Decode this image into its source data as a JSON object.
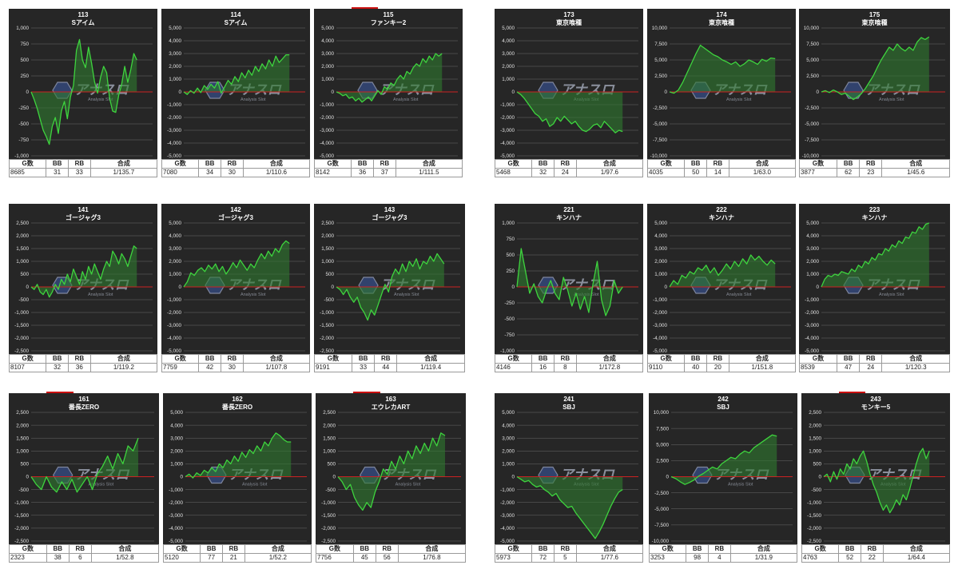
{
  "watermark": {
    "logo_text": "アナスロ",
    "tagline": "Analysis Slot"
  },
  "colors": {
    "background": "#262626",
    "line": "#3ed43e",
    "fill": "#2f7a2f",
    "zero_line": "#cc2222",
    "grid": "#6a6a6a",
    "header_bar": "#cc1111"
  },
  "headers": {
    "games": "G数",
    "bb": "BB",
    "rb": "RB",
    "combined": "合成"
  },
  "chart_data": [
    {
      "type": "line",
      "machine": "113",
      "model": "Sアイム",
      "ylim": [
        -1000,
        1000
      ],
      "ticks": [
        "1,000",
        "750",
        "500",
        "250",
        "0",
        "-250",
        "-500",
        "-750",
        "-1,000"
      ],
      "y": [
        0,
        -120,
        -260,
        -430,
        -600,
        -700,
        -820,
        -540,
        -400,
        -650,
        -300,
        -150,
        -420,
        -80,
        100,
        650,
        820,
        500,
        380,
        700,
        450,
        160,
        -20,
        230,
        400,
        300,
        -100,
        -300,
        -320,
        -50,
        120,
        400,
        150,
        350,
        600,
        500
      ],
      "stats": {
        "games": "8685",
        "bb": "31",
        "rb": "33",
        "combined": "1/135.7"
      }
    },
    {
      "type": "line",
      "machine": "114",
      "model": "Sアイム",
      "ylim": [
        -5000,
        5000
      ],
      "ticks": [
        "5,000",
        "4,000",
        "3,000",
        "2,000",
        "1,000",
        "0",
        "-1,000",
        "-2,000",
        "-3,000",
        "-4,000",
        "-5,000"
      ],
      "y": [
        0,
        -200,
        100,
        -100,
        300,
        -50,
        500,
        200,
        600,
        300,
        800,
        -100,
        400,
        900,
        600,
        1200,
        800,
        1500,
        1100,
        1700,
        1300,
        2000,
        1600,
        2200,
        1800,
        2500,
        2000,
        2800,
        2300,
        2600,
        2900,
        2900
      ],
      "stats": {
        "games": "7080",
        "bb": "34",
        "rb": "30",
        "combined": "1/110.6"
      }
    },
    {
      "type": "line",
      "machine": "115",
      "model": "ファンキー2",
      "ylim": [
        -5000,
        5000
      ],
      "ticks": [
        "5,000",
        "4,000",
        "3,000",
        "2,000",
        "1,000",
        "0",
        "-1,000",
        "-2,000",
        "-3,000",
        "-4,000",
        "-5,000"
      ],
      "topbar": true,
      "y": [
        0,
        -100,
        -300,
        -200,
        -500,
        -400,
        -700,
        -500,
        -800,
        -600,
        -400,
        -700,
        -300,
        100,
        -200,
        400,
        200,
        700,
        500,
        1000,
        1300,
        1000,
        1600,
        1400,
        1900,
        2200,
        2000,
        2600,
        2300,
        2800,
        2500,
        3000,
        2800,
        3000
      ],
      "stats": {
        "games": "8142",
        "bb": "36",
        "rb": "37",
        "combined": "1/111.5"
      }
    },
    {
      "type": "line",
      "machine": "173",
      "model": "東京喰種",
      "ylim": [
        -5000,
        5000
      ],
      "ticks": [
        "5,000",
        "4,000",
        "3,000",
        "2,000",
        "1,000",
        "0",
        "-1,000",
        "-2,000",
        "-3,000",
        "-4,000",
        "-5,000"
      ],
      "y": [
        0,
        -200,
        -500,
        -900,
        -1300,
        -1700,
        -1900,
        -2300,
        -2100,
        -2700,
        -2500,
        -2000,
        -2300,
        -1900,
        -2200,
        -2500,
        -2300,
        -2700,
        -3000,
        -3100,
        -2900,
        -2600,
        -2500,
        -2800,
        -2300,
        -2600,
        -2900,
        -3200,
        -3000,
        -3100
      ],
      "stats": {
        "games": "5468",
        "bb": "32",
        "rb": "24",
        "combined": "1/97.6"
      }
    },
    {
      "type": "line",
      "machine": "174",
      "model": "東京喰種",
      "ylim": [
        -10000,
        10000
      ],
      "ticks": [
        "10,000",
        "7,500",
        "5,000",
        "2,500",
        "0",
        "-2,500",
        "-5,000",
        "-7,500",
        "-10,000"
      ],
      "y": [
        0,
        -200,
        300,
        1500,
        3000,
        4500,
        6000,
        7300,
        6800,
        6300,
        5800,
        5500,
        5000,
        4700,
        4300,
        4700,
        4000,
        4400,
        5000,
        4700,
        4300,
        5100,
        4800,
        5300,
        5200
      ],
      "stats": {
        "games": "4035",
        "bb": "50",
        "rb": "14",
        "combined": "1/63.0"
      }
    },
    {
      "type": "line",
      "machine": "175",
      "model": "東京喰種",
      "ylim": [
        -10000,
        10000
      ],
      "ticks": [
        "10,000",
        "7,500",
        "5,000",
        "2,500",
        "0",
        "-2,500",
        "-5,000",
        "-7,500",
        "-10,000"
      ],
      "y": [
        0,
        200,
        -100,
        300,
        0,
        -400,
        -200,
        -700,
        -1200,
        -800,
        -300,
        500,
        1500,
        2500,
        3800,
        5000,
        6000,
        7000,
        6500,
        7500,
        6800,
        6400,
        7000,
        6500,
        7800,
        8500,
        8200,
        8600
      ],
      "stats": {
        "games": "3877",
        "bb": "62",
        "rb": "23",
        "combined": "1/45.6"
      }
    },
    {
      "type": "line",
      "machine": "141",
      "model": "ゴージャグ3",
      "ylim": [
        -2500,
        2500
      ],
      "ticks": [
        "2,500",
        "2,000",
        "1,500",
        "1,000",
        "500",
        "0",
        "-500",
        "-1,000",
        "-1,500",
        "-2,000",
        "-2,500"
      ],
      "y": [
        0,
        -100,
        100,
        -200,
        -300,
        -100,
        -400,
        -200,
        100,
        -100,
        300,
        100,
        500,
        200,
        700,
        400,
        100,
        600,
        300,
        800,
        500,
        900,
        600,
        300,
        700,
        1000,
        800,
        1400,
        1200,
        900,
        1300,
        1100,
        800,
        1200,
        1600,
        1500
      ],
      "stats": {
        "games": "8107",
        "bb": "32",
        "rb": "36",
        "combined": "1/119.2"
      }
    },
    {
      "type": "line",
      "machine": "142",
      "model": "ゴージャグ3",
      "ylim": [
        -5000,
        5000
      ],
      "ticks": [
        "5,000",
        "4,000",
        "3,000",
        "2,000",
        "1,000",
        "0",
        "-1,000",
        "-2,000",
        "-3,000",
        "-4,000",
        "-5,000"
      ],
      "y": [
        0,
        400,
        1100,
        900,
        1300,
        1500,
        1200,
        1700,
        1400,
        1800,
        1200,
        1600,
        1000,
        1400,
        1900,
        1500,
        2100,
        1700,
        1300,
        1800,
        1500,
        2100,
        2600,
        2200,
        2800,
        2400,
        3000,
        2700,
        3300,
        3600,
        3400
      ],
      "stats": {
        "games": "7759",
        "bb": "42",
        "rb": "30",
        "combined": "1/107.8"
      }
    },
    {
      "type": "line",
      "machine": "143",
      "model": "ゴージャグ3",
      "ylim": [
        -2500,
        2500
      ],
      "ticks": [
        "2,500",
        "2,000",
        "1,500",
        "1,000",
        "500",
        "0",
        "-500",
        "-1,000",
        "-1,500",
        "-2,000",
        "-2,500"
      ],
      "y": [
        0,
        -100,
        -300,
        -100,
        -400,
        -600,
        -400,
        -800,
        -1000,
        -1300,
        -900,
        -1100,
        -700,
        -300,
        100,
        -200,
        400,
        700,
        500,
        900,
        600,
        1000,
        800,
        1100,
        700,
        1000,
        900,
        1200,
        1000,
        1300,
        1100,
        900
      ],
      "stats": {
        "games": "9191",
        "bb": "33",
        "rb": "44",
        "combined": "1/119.4"
      }
    },
    {
      "type": "line",
      "machine": "221",
      "model": "キンハナ",
      "ylim": [
        -1000,
        1000
      ],
      "ticks": [
        "1,000",
        "750",
        "500",
        "250",
        "0",
        "-250",
        "-500",
        "-750",
        "-1,000"
      ],
      "y": [
        0,
        600,
        250,
        -100,
        50,
        -150,
        -250,
        -50,
        100,
        -100,
        -200,
        150,
        -50,
        -300,
        -100,
        -350,
        -150,
        -400,
        50,
        400,
        -200,
        -450,
        -300,
        100,
        -100,
        0
      ],
      "stats": {
        "games": "4146",
        "bb": "16",
        "rb": "8",
        "combined": "1/172.8"
      }
    },
    {
      "type": "line",
      "machine": "222",
      "model": "キンハナ",
      "ylim": [
        -5000,
        5000
      ],
      "ticks": [
        "5,000",
        "4,000",
        "3,000",
        "2,000",
        "1,000",
        "0",
        "-1,000",
        "-2,000",
        "-3,000",
        "-4,000",
        "-5,000"
      ],
      "y": [
        0,
        500,
        200,
        900,
        700,
        1200,
        1000,
        1500,
        1300,
        1700,
        1100,
        1500,
        900,
        1300,
        1800,
        1400,
        2000,
        1600,
        2200,
        1800,
        2500,
        2100,
        2400,
        2000,
        1700,
        2100,
        1800
      ],
      "stats": {
        "games": "9110",
        "bb": "40",
        "rb": "20",
        "combined": "1/151.8"
      }
    },
    {
      "type": "line",
      "machine": "223",
      "model": "キンハナ",
      "ylim": [
        -5000,
        5000
      ],
      "ticks": [
        "5,000",
        "4,000",
        "3,000",
        "2,000",
        "1,000",
        "0",
        "-1,000",
        "-2,000",
        "-3,000",
        "-4,000",
        "-5,000"
      ],
      "y": [
        0,
        600,
        900,
        800,
        1000,
        900,
        1200,
        1100,
        1000,
        1400,
        1200,
        1700,
        1500,
        2000,
        1800,
        2300,
        2100,
        2600,
        2500,
        3000,
        2800,
        3300,
        3100,
        3600,
        3400,
        3900,
        3800,
        4300,
        4200,
        4700,
        4500,
        4900,
        5000
      ],
      "stats": {
        "games": "8539",
        "bb": "47",
        "rb": "24",
        "combined": "1/120.3"
      }
    },
    {
      "type": "line",
      "machine": "161",
      "model": "番長ZERO",
      "ylim": [
        -2500,
        2500
      ],
      "ticks": [
        "2,500",
        "2,000",
        "1,500",
        "1,000",
        "500",
        "0",
        "-500",
        "-1,000",
        "-1,500",
        "-2,000",
        "-2,500"
      ],
      "topbar": true,
      "y": [
        0,
        -300,
        -500,
        0,
        -400,
        -600,
        -200,
        -500,
        -100,
        -600,
        -300,
        0,
        -500,
        100,
        400,
        800,
        300,
        900,
        500,
        1200,
        1000,
        1500
      ],
      "stats": {
        "games": "2323",
        "bb": "38",
        "rb": "6",
        "combined": "1/52.8"
      }
    },
    {
      "type": "line",
      "machine": "162",
      "model": "番長ZERO",
      "ylim": [
        -5000,
        5000
      ],
      "ticks": [
        "5,000",
        "4,000",
        "3,000",
        "2,000",
        "1,000",
        "0",
        "-1,000",
        "-2,000",
        "-3,000",
        "-4,000",
        "-5,000"
      ],
      "y": [
        0,
        200,
        -100,
        300,
        100,
        500,
        300,
        700,
        400,
        1000,
        700,
        1300,
        1000,
        1600,
        1200,
        1900,
        1500,
        2100,
        1800,
        2400,
        2000,
        2700,
        2400,
        3000,
        3400,
        3200,
        2900,
        2700,
        2700
      ],
      "stats": {
        "games": "5120",
        "bb": "77",
        "rb": "21",
        "combined": "1/52.2"
      }
    },
    {
      "type": "line",
      "machine": "163",
      "model": "エウレカART",
      "ylim": [
        -2500,
        2500
      ],
      "ticks": [
        "2,500",
        "2,000",
        "1,500",
        "1,000",
        "500",
        "0",
        "-500",
        "-1,000",
        "-1,500",
        "-2,000",
        "-2,500"
      ],
      "topbar": true,
      "y": [
        0,
        -200,
        -500,
        -300,
        -800,
        -1100,
        -1300,
        -1000,
        -1200,
        -600,
        -200,
        300,
        100,
        600,
        300,
        800,
        500,
        1000,
        700,
        1200,
        900,
        1300,
        1000,
        1500,
        1200,
        1700,
        1600
      ],
      "stats": {
        "games": "7756",
        "bb": "45",
        "rb": "56",
        "combined": "1/76.8"
      }
    },
    {
      "type": "line",
      "machine": "241",
      "model": "SBJ",
      "ylim": [
        -5000,
        5000
      ],
      "ticks": [
        "5,000",
        "4,000",
        "3,000",
        "2,000",
        "1,000",
        "0",
        "-1,000",
        "-2,000",
        "-3,000",
        "-4,000",
        "-5,000"
      ],
      "y": [
        0,
        -200,
        -400,
        -300,
        -600,
        -800,
        -700,
        -1000,
        -1200,
        -1500,
        -1300,
        -1800,
        -2100,
        -2400,
        -2300,
        -2800,
        -3200,
        -3600,
        -4000,
        -4400,
        -4800,
        -4300,
        -3700,
        -3000,
        -2300,
        -1700,
        -1200,
        -1000
      ],
      "stats": {
        "games": "5973",
        "bb": "72",
        "rb": "5",
        "combined": "1/77.6"
      }
    },
    {
      "type": "line",
      "machine": "242",
      "model": "SBJ",
      "ylim": [
        -10000,
        10000
      ],
      "ticks": [
        "10,000",
        "7,500",
        "5,000",
        "2,500",
        "0",
        "-2,500",
        "-5,000",
        "-7,500",
        "-10,000"
      ],
      "y": [
        0,
        -300,
        -800,
        -1200,
        -900,
        -500,
        100,
        500,
        1000,
        1500,
        1200,
        2000,
        2500,
        3000,
        2800,
        3500,
        4000,
        3700,
        4500,
        5000,
        5500,
        6000,
        6500,
        6300
      ],
      "stats": {
        "games": "3253",
        "bb": "98",
        "rb": "4",
        "combined": "1/31.9"
      }
    },
    {
      "type": "line",
      "machine": "243",
      "model": "モンキー5",
      "ylim": [
        -2500,
        2500
      ],
      "ticks": [
        "2,500",
        "2,000",
        "1,500",
        "1,000",
        "500",
        "0",
        "-500",
        "-1,000",
        "-1,500",
        "-2,000",
        "-2,500"
      ],
      "topbar": true,
      "y": [
        0,
        100,
        -200,
        200,
        -100,
        300,
        100,
        500,
        300,
        700,
        500,
        800,
        1000,
        600,
        100,
        -300,
        -600,
        -1000,
        -1300,
        -1100,
        -1400,
        -1200,
        -900,
        -1100,
        -700,
        -900,
        -500,
        0,
        500,
        900,
        1100,
        700,
        1000
      ],
      "stats": {
        "games": "4763",
        "bb": "52",
        "rb": "22",
        "combined": "1/64.4"
      }
    }
  ]
}
